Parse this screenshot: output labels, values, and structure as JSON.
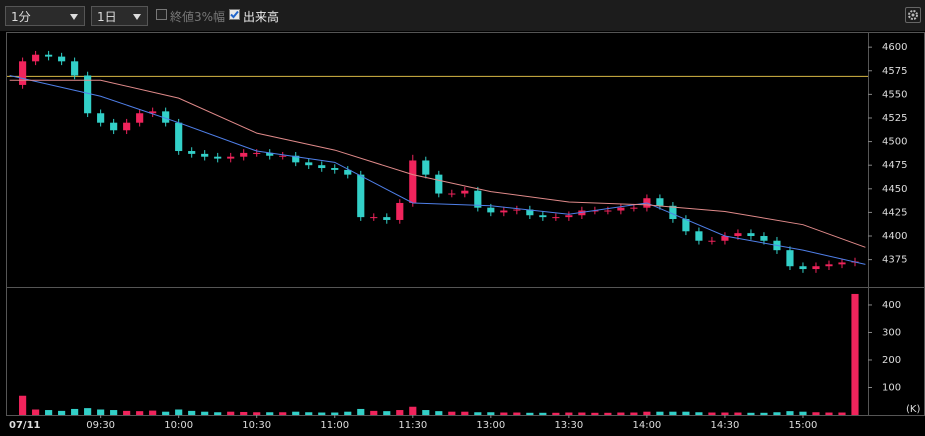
{
  "toolbar": {
    "interval": "1分",
    "period": "1日",
    "option_close_range": "終値3%幅",
    "option_volume": "出来高"
  },
  "chart_data": [
    {
      "type": "candlestick",
      "x": [
        0,
        5,
        10,
        15,
        20,
        25,
        30,
        35,
        40,
        45,
        50,
        55,
        60,
        65,
        70,
        75,
        80,
        85,
        90,
        95,
        100,
        105,
        110,
        115,
        120,
        125,
        130,
        135,
        140,
        145,
        150,
        155,
        160,
        165,
        170,
        175,
        180,
        185,
        190,
        195,
        200,
        205,
        210,
        215,
        220,
        225,
        230,
        235,
        240,
        245,
        250,
        255,
        260,
        265,
        270,
        275,
        280,
        285,
        290,
        295,
        300,
        305,
        310,
        315,
        320
      ],
      "open": [
        4560,
        4585,
        4592,
        4590,
        4585,
        4570,
        4530,
        4520,
        4512,
        4520,
        4530,
        4532,
        4520,
        4490,
        4487,
        4484,
        4482,
        4484,
        4488,
        4488,
        4485,
        4485,
        4478,
        4475,
        4472,
        4470,
        4465,
        4420,
        4420,
        4417,
        4435,
        4480,
        4465,
        4445,
        4445,
        4448,
        4430,
        4425,
        4427,
        4428,
        4422,
        4420,
        4420,
        4422,
        4427,
        4427,
        4427,
        4430,
        4430,
        4440,
        4432,
        4418,
        4405,
        4395,
        4395,
        4400,
        4403,
        4400,
        4395,
        4385,
        4368,
        4365,
        4368,
        4370,
        4372
      ],
      "high": [
        4589,
        4596,
        4596,
        4594,
        4589,
        4574,
        4534,
        4524,
        4524,
        4534,
        4536,
        4536,
        4524,
        4494,
        4491,
        4488,
        4488,
        4492,
        4492,
        4492,
        4489,
        4489,
        4482,
        4479,
        4476,
        4474,
        4469,
        4424,
        4424,
        4439,
        4486,
        4484,
        4469,
        4449,
        4452,
        4452,
        4434,
        4431,
        4432,
        4432,
        4426,
        4424,
        4426,
        4431,
        4431,
        4431,
        4434,
        4434,
        4444,
        4444,
        4436,
        4422,
        4409,
        4399,
        4404,
        4407,
        4407,
        4404,
        4399,
        4389,
        4372,
        4372,
        4374,
        4376,
        4377
      ],
      "low": [
        4556,
        4581,
        4586,
        4581,
        4566,
        4526,
        4516,
        4508,
        4508,
        4516,
        4526,
        4516,
        4486,
        4483,
        4480,
        4478,
        4478,
        4480,
        4484,
        4481,
        4481,
        4474,
        4471,
        4468,
        4466,
        4461,
        4416,
        4416,
        4413,
        4413,
        4431,
        4461,
        4441,
        4441,
        4441,
        4426,
        4421,
        4421,
        4423,
        4418,
        4416,
        4416,
        4416,
        4418,
        4423,
        4423,
        4423,
        4426,
        4426,
        4428,
        4414,
        4401,
        4391,
        4391,
        4391,
        4396,
        4396,
        4391,
        4381,
        4364,
        4361,
        4361,
        4364,
        4366,
        4368
      ],
      "close": [
        4585,
        4592,
        4590,
        4585,
        4570,
        4530,
        4520,
        4512,
        4520,
        4530,
        4532,
        4520,
        4490,
        4487,
        4484,
        4482,
        4484,
        4488,
        4488,
        4485,
        4485,
        4478,
        4475,
        4472,
        4470,
        4465,
        4420,
        4420,
        4417,
        4435,
        4480,
        4465,
        4445,
        4445,
        4448,
        4430,
        4425,
        4427,
        4428,
        4422,
        4420,
        4420,
        4422,
        4427,
        4427,
        4427,
        4430,
        4430,
        4440,
        4432,
        4418,
        4405,
        4395,
        4395,
        4400,
        4403,
        4400,
        4395,
        4385,
        4368,
        4365,
        4368,
        4370,
        4372,
        4373
      ],
      "up_color": "#f0245c",
      "down_color": "#33d0c8",
      "series": [
        {
          "x": [
            -5,
            30,
            60,
            90,
            120,
            150,
            180,
            210,
            240,
            270,
            300,
            324
          ],
          "values": [
            4570,
            4548,
            4520,
            4490,
            4478,
            4435,
            4432,
            4423,
            4435,
            4400,
            4385,
            4370
          ],
          "color": "#4f7fe8"
        },
        {
          "x": [
            -5,
            30,
            60,
            90,
            120,
            150,
            180,
            210,
            240,
            270,
            300,
            324
          ],
          "values": [
            4565,
            4565,
            4546,
            4509,
            4491,
            4465,
            4447,
            4436,
            4433,
            4426,
            4412,
            4388
          ],
          "color": "#e08a8a"
        }
      ],
      "ref_line": {
        "value": 4569,
        "color": "#d8b846"
      },
      "xlim": [
        -6,
        325
      ],
      "ylim": [
        4346,
        4615
      ],
      "yticks": [
        4375,
        4400,
        4425,
        4450,
        4475,
        4500,
        4525,
        4550,
        4575,
        4600
      ]
    },
    {
      "type": "bar",
      "x": [
        0,
        5,
        10,
        15,
        20,
        25,
        30,
        35,
        40,
        45,
        50,
        55,
        60,
        65,
        70,
        75,
        80,
        85,
        90,
        95,
        100,
        105,
        110,
        115,
        120,
        125,
        130,
        135,
        140,
        145,
        150,
        155,
        160,
        165,
        170,
        175,
        180,
        185,
        190,
        195,
        200,
        205,
        210,
        215,
        220,
        225,
        230,
        235,
        240,
        245,
        250,
        255,
        260,
        265,
        270,
        275,
        280,
        285,
        290,
        295,
        300,
        305,
        310,
        315,
        320
      ],
      "values": [
        70,
        20,
        18,
        15,
        22,
        25,
        20,
        18,
        15,
        14,
        16,
        12,
        20,
        15,
        12,
        10,
        12,
        11,
        10,
        10,
        10,
        12,
        10,
        9,
        9,
        12,
        22,
        15,
        14,
        18,
        30,
        18,
        14,
        12,
        12,
        10,
        10,
        9,
        9,
        8,
        8,
        8,
        9,
        9,
        8,
        8,
        9,
        9,
        12,
        12,
        12,
        12,
        10,
        9,
        9,
        9,
        8,
        8,
        10,
        14,
        12,
        10,
        9,
        9,
        440
      ],
      "unit_label": "(K)",
      "date_label": "07/11",
      "xlim": [
        -6,
        325
      ],
      "ylim": [
        0,
        458
      ],
      "yticks": [
        100,
        200,
        300,
        400
      ],
      "xticks": [
        {
          "value": 30,
          "label": "09:30"
        },
        {
          "value": 60,
          "label": "10:00"
        },
        {
          "value": 90,
          "label": "10:30"
        },
        {
          "value": 120,
          "label": "11:00"
        },
        {
          "value": 150,
          "label": "11:30"
        },
        {
          "value": 180,
          "label": "13:00"
        },
        {
          "value": 210,
          "label": "13:30"
        },
        {
          "value": 240,
          "label": "14:00"
        },
        {
          "value": 270,
          "label": "14:30"
        },
        {
          "value": 300,
          "label": "15:00"
        }
      ]
    }
  ]
}
